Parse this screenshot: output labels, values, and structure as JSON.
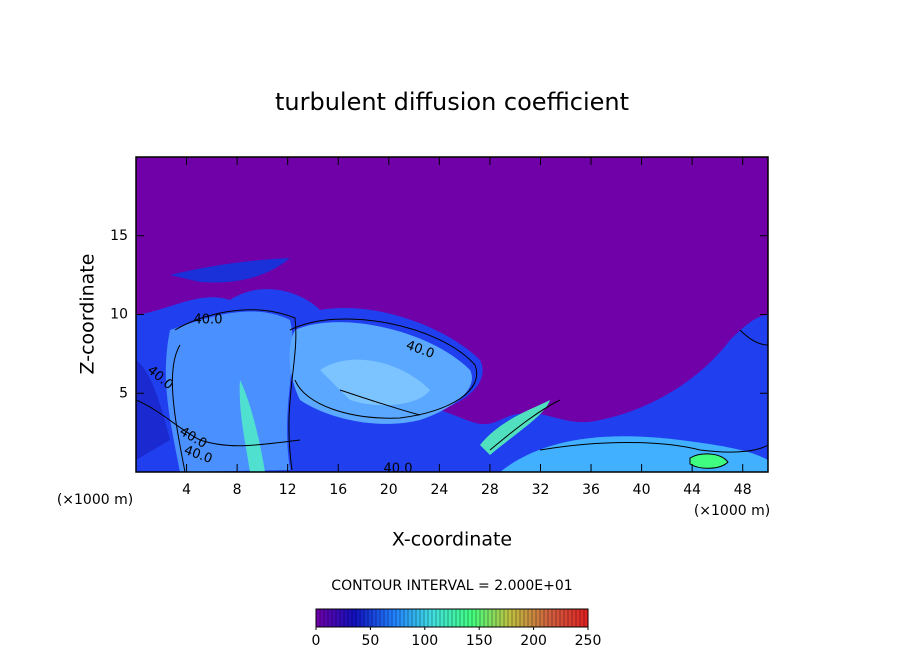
{
  "chart_data": {
    "type": "contour",
    "title": "turbulent diffusion coefficient",
    "x_label": "X-coordinate",
    "y_label": "Z-coordinate",
    "x_unit": "(×1000 m)",
    "xlim": [
      0,
      50
    ],
    "ylim": [
      0,
      20
    ],
    "xticks": [
      4,
      8,
      12,
      16,
      20,
      24,
      28,
      32,
      36,
      40,
      44,
      48
    ],
    "yticks": [
      5,
      10,
      15
    ],
    "contour_interval_text": "CONTOUR INTERVAL = 2.000E+01",
    "contour_labels": [
      "40.0",
      "40.0",
      "40.0",
      "40.0",
      "40.0",
      "40.0"
    ],
    "colorbar": {
      "lim": [
        0,
        250
      ],
      "ticks": [
        0,
        50,
        100,
        150,
        200,
        250
      ],
      "colors": [
        "#7000a8",
        "#1010c0",
        "#2080ff",
        "#40e0e0",
        "#40ff80",
        "#c0c040",
        "#d06040",
        "#e02020"
      ]
    }
  }
}
